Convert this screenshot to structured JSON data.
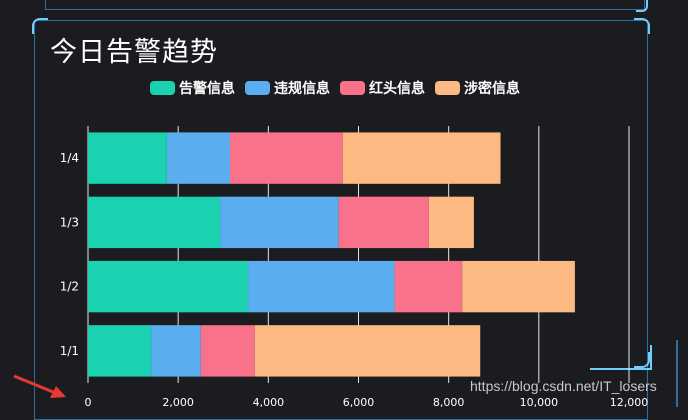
{
  "panel": {
    "title": "今日告警趋势"
  },
  "watermark": "https://blog.csdn.net/IT_losers",
  "colors": {
    "告警信息": "#1ad1b0",
    "违规信息": "#5aaef0",
    "红头信息": "#f7728a",
    "涉密信息": "#fcba82"
  },
  "chart_data": {
    "type": "bar",
    "orientation": "horizontal",
    "stacked": true,
    "title": "今日告警趋势",
    "categories": [
      "1/1",
      "1/2",
      "1/3",
      "1/4"
    ],
    "series": [
      {
        "name": "告警信息",
        "color": "#1ad1b0",
        "values": [
          1400,
          3550,
          2930,
          1750
        ]
      },
      {
        "name": "违规信息",
        "color": "#5aaef0",
        "values": [
          1100,
          3250,
          2630,
          1400
        ]
      },
      {
        "name": "红头信息",
        "color": "#f7728a",
        "values": [
          1200,
          1500,
          2000,
          2500
        ]
      },
      {
        "name": "涉密信息",
        "color": "#fcba82",
        "values": [
          5000,
          2500,
          1000,
          3500
        ]
      }
    ],
    "x_ticks": [
      "0",
      "2,000",
      "4,000",
      "6,000",
      "8,000",
      "10,000",
      "12,000"
    ],
    "xlim": [
      0,
      12000
    ],
    "legend_position": "top",
    "grid": "vertical"
  }
}
